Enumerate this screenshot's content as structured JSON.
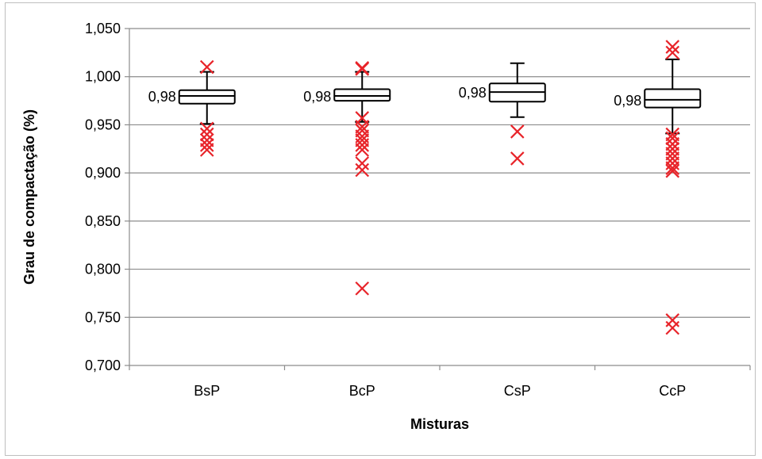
{
  "chart_data": {
    "type": "box",
    "title": "",
    "xlabel": "Misturas",
    "ylabel": "Grau de compactação (%)",
    "ylim": [
      0.7,
      1.05
    ],
    "y_ticks": [
      {
        "value": 0.7,
        "label": "0,700"
      },
      {
        "value": 0.75,
        "label": "0,750"
      },
      {
        "value": 0.8,
        "label": "0,800"
      },
      {
        "value": 0.85,
        "label": "0,850"
      },
      {
        "value": 0.9,
        "label": "0,900"
      },
      {
        "value": 0.95,
        "label": "0,950"
      },
      {
        "value": 1.0,
        "label": "1,000"
      },
      {
        "value": 1.05,
        "label": "1,050"
      }
    ],
    "grid": "horizontal",
    "categories": [
      "BsP",
      "BcP",
      "CsP",
      "CcP"
    ],
    "boxes": [
      {
        "category": "BsP",
        "whisker_low": 0.951,
        "q1": 0.972,
        "median": 0.98,
        "q3": 0.986,
        "whisker_high": 1.005,
        "median_label": "0,98",
        "outliers": [
          1.01,
          0.946,
          0.94,
          0.934,
          0.929,
          0.924
        ]
      },
      {
        "category": "BcP",
        "whisker_low": 0.953,
        "q1": 0.975,
        "median": 0.98,
        "q3": 0.987,
        "whisker_high": 1.005,
        "median_label": "0,98",
        "outliers": [
          1.009,
          1.008,
          0.957,
          0.948,
          0.944,
          0.938,
          0.934,
          0.929,
          0.924,
          0.91,
          0.903,
          0.78
        ]
      },
      {
        "category": "CsP",
        "whisker_low": 0.958,
        "q1": 0.974,
        "median": 0.984,
        "q3": 0.993,
        "whisker_high": 1.014,
        "median_label": "0,98",
        "outliers": [
          0.943,
          0.915
        ]
      },
      {
        "category": "CcP",
        "whisker_low": 0.941,
        "q1": 0.968,
        "median": 0.976,
        "q3": 0.987,
        "whisker_high": 1.018,
        "median_label": "0,98",
        "outliers": [
          1.031,
          1.025,
          0.94,
          0.936,
          0.93,
          0.925,
          0.92,
          0.915,
          0.91,
          0.905,
          0.902,
          0.747,
          0.739
        ]
      }
    ],
    "colors": {
      "box_stroke": "#000000",
      "box_fill": "#ffffff",
      "outlier": "#e8242a",
      "grid": "#8c8c8c",
      "axis": "#8c8c8c"
    }
  }
}
